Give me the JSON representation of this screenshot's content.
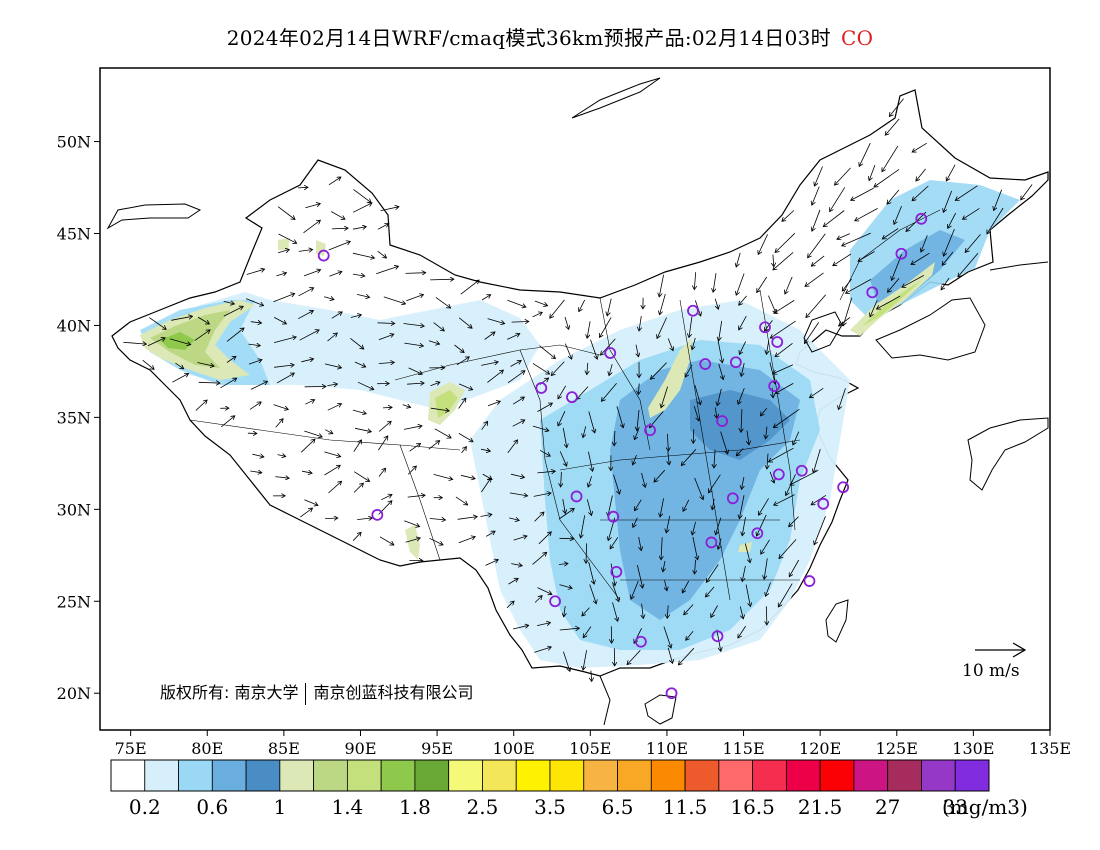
{
  "title": {
    "text": "2024年02月14日WRF/cmaq模式36km预报产品:02月14日03时",
    "species": "CO",
    "species_color": "#e02020"
  },
  "map": {
    "lon_range": [
      73,
      135
    ],
    "lat_range": [
      18,
      54
    ],
    "x_ticks": [
      {
        "value": 75,
        "label": "75E"
      },
      {
        "value": 80,
        "label": "80E"
      },
      {
        "value": 85,
        "label": "85E"
      },
      {
        "value": 90,
        "label": "90E"
      },
      {
        "value": 95,
        "label": "95E"
      },
      {
        "value": 100,
        "label": "100E"
      },
      {
        "value": 105,
        "label": "105E"
      },
      {
        "value": 110,
        "label": "110E"
      },
      {
        "value": 115,
        "label": "115E"
      },
      {
        "value": 120,
        "label": "120E"
      },
      {
        "value": 125,
        "label": "125E"
      },
      {
        "value": 130,
        "label": "130E"
      },
      {
        "value": 135,
        "label": "135E"
      }
    ],
    "y_ticks": [
      {
        "value": 20,
        "label": "20N"
      },
      {
        "value": 25,
        "label": "25N"
      },
      {
        "value": 30,
        "label": "30N"
      },
      {
        "value": 35,
        "label": "35N"
      },
      {
        "value": 40,
        "label": "40N"
      },
      {
        "value": 45,
        "label": "45N"
      },
      {
        "value": 50,
        "label": "50N"
      }
    ],
    "copyright_label": "版权所有:",
    "copyright_org1": "南京大学",
    "copyright_org2": "南京创蓝科技有限公司",
    "wind_reference_label": "10 m/s",
    "station_color": "#8b1fd8",
    "stations": [
      [
        87.6,
        43.8
      ],
      [
        91.1,
        29.7
      ],
      [
        101.8,
        36.6
      ],
      [
        103.8,
        36.1
      ],
      [
        106.3,
        38.5
      ],
      [
        111.7,
        40.8
      ],
      [
        112.5,
        37.9
      ],
      [
        114.5,
        38.0
      ],
      [
        116.4,
        39.9
      ],
      [
        117.2,
        39.1
      ],
      [
        117.0,
        36.7
      ],
      [
        113.6,
        34.8
      ],
      [
        108.9,
        34.3
      ],
      [
        104.1,
        30.7
      ],
      [
        106.5,
        29.6
      ],
      [
        106.7,
        26.6
      ],
      [
        102.7,
        25.0
      ],
      [
        108.3,
        22.8
      ],
      [
        113.3,
        23.1
      ],
      [
        110.3,
        20.0
      ],
      [
        112.9,
        28.2
      ],
      [
        114.3,
        30.6
      ],
      [
        115.9,
        28.7
      ],
      [
        117.3,
        31.9
      ],
      [
        118.8,
        32.1
      ],
      [
        120.2,
        30.3
      ],
      [
        121.5,
        31.2
      ],
      [
        119.3,
        26.1
      ],
      [
        123.4,
        41.8
      ],
      [
        125.3,
        43.9
      ],
      [
        126.6,
        45.8
      ]
    ]
  },
  "colorbar": {
    "colors": [
      "#ffffff",
      "#d6effb",
      "#9ad8f5",
      "#6aaedf",
      "#4a8cc4",
      "#dce9b7",
      "#bcd884",
      "#c3e07c",
      "#8ec94c",
      "#6aa935",
      "#f4f977",
      "#f3e659",
      "#fff200",
      "#fee505",
      "#f8b442",
      "#f9a825",
      "#fb8a00",
      "#ed5b2c",
      "#fe6a6b",
      "#f52d4f",
      "#ed0048",
      "#fb0005",
      "#cc1483",
      "#a52c5c",
      "#9537c7",
      "#812cdf"
    ],
    "labels": [
      "0.2",
      "0.6",
      "1",
      "1.4",
      "1.8",
      "2.5",
      "3.5",
      "6.5",
      "11.5",
      "16.5",
      "21.5",
      "27",
      "33"
    ],
    "unit": "(mg/m3)"
  }
}
